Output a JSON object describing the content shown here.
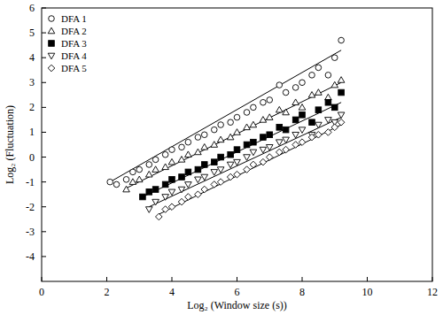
{
  "chart_data": {
    "type": "scatter",
    "x_label": "Log₂ (Window size (s))",
    "y_label": "Log₂ (Fluctuation)",
    "xlim": [
      0,
      12
    ],
    "ylim": [
      -5,
      6
    ],
    "xticks": [
      0,
      2,
      4,
      6,
      8,
      10,
      12
    ],
    "yticks": [
      -4,
      -3,
      -2,
      -1,
      0,
      1,
      2,
      3,
      4,
      5,
      6
    ],
    "grid": false,
    "legend": "top-left",
    "color": "#000000",
    "series": [
      {
        "name": "DFA 1",
        "marker": "circle-open",
        "x": [
          2.1,
          2.3,
          2.6,
          2.8,
          3.0,
          3.3,
          3.5,
          3.8,
          4.0,
          4.3,
          4.5,
          4.8,
          5.0,
          5.3,
          5.5,
          5.8,
          6.0,
          6.3,
          6.5,
          6.8,
          7.0,
          7.3,
          7.5,
          7.8,
          8.0,
          8.3,
          8.5,
          8.8,
          9.0,
          9.2
        ],
        "values": [
          -1.0,
          -1.1,
          -0.9,
          -0.6,
          -0.5,
          -0.3,
          -0.1,
          0.1,
          0.3,
          0.4,
          0.6,
          0.8,
          0.9,
          1.1,
          1.3,
          1.4,
          1.6,
          1.8,
          2.0,
          2.2,
          2.3,
          2.9,
          2.6,
          2.8,
          3.0,
          3.3,
          3.6,
          3.3,
          4.0,
          4.7
        ],
        "fit_x": [
          2.1,
          9.2
        ],
        "fit_values": [
          -1.0,
          4.3
        ]
      },
      {
        "name": "DFA 2",
        "marker": "triangle-open",
        "x": [
          2.6,
          2.8,
          3.0,
          3.3,
          3.5,
          3.8,
          4.0,
          4.3,
          4.5,
          4.8,
          5.0,
          5.3,
          5.5,
          5.8,
          6.0,
          6.3,
          6.5,
          6.8,
          7.0,
          7.3,
          7.5,
          7.8,
          8.0,
          8.3,
          8.5,
          8.8,
          9.0,
          9.2
        ],
        "values": [
          -1.3,
          -1.0,
          -0.9,
          -0.7,
          -0.5,
          -0.4,
          -0.2,
          -0.1,
          0.1,
          0.2,
          0.4,
          0.5,
          0.7,
          0.8,
          1.0,
          1.2,
          1.3,
          1.5,
          1.6,
          1.9,
          1.8,
          2.2,
          2.0,
          2.5,
          2.6,
          2.4,
          2.9,
          3.1
        ],
        "fit_x": [
          2.6,
          9.2
        ],
        "fit_values": [
          -1.25,
          3.0
        ]
      },
      {
        "name": "DFA 3",
        "marker": "square",
        "x": [
          3.1,
          3.3,
          3.5,
          3.8,
          4.0,
          4.3,
          4.5,
          4.8,
          5.0,
          5.3,
          5.5,
          5.8,
          6.0,
          6.3,
          6.5,
          6.8,
          7.0,
          7.3,
          7.5,
          7.8,
          8.0,
          8.3,
          8.5,
          8.8,
          9.0,
          9.2
        ],
        "values": [
          -1.6,
          -1.4,
          -1.3,
          -1.1,
          -0.9,
          -0.8,
          -0.6,
          -0.5,
          -0.3,
          -0.2,
          0.0,
          0.1,
          0.3,
          0.5,
          0.6,
          0.8,
          0.9,
          1.2,
          1.1,
          1.5,
          1.7,
          1.4,
          1.9,
          2.2,
          2.0,
          2.6
        ],
        "fit_x": [
          3.1,
          9.2
        ],
        "fit_values": [
          -1.6,
          2.2
        ]
      },
      {
        "name": "DFA 4",
        "marker": "triangle-down-open",
        "x": [
          3.3,
          3.5,
          3.8,
          4.0,
          4.3,
          4.5,
          4.8,
          5.0,
          5.3,
          5.5,
          5.8,
          6.0,
          6.3,
          6.5,
          6.8,
          7.0,
          7.3,
          7.5,
          7.8,
          8.0,
          8.3,
          8.5,
          8.8,
          9.0,
          9.2
        ],
        "values": [
          -2.1,
          -1.8,
          -1.6,
          -1.4,
          -1.3,
          -1.1,
          -0.9,
          -0.8,
          -0.6,
          -0.5,
          -0.3,
          -0.2,
          0.0,
          0.2,
          0.3,
          0.4,
          0.6,
          0.7,
          0.9,
          1.1,
          0.9,
          1.3,
          1.5,
          1.4,
          1.7
        ],
        "fit_x": [
          3.3,
          9.2
        ],
        "fit_values": [
          -2.0,
          1.6
        ]
      },
      {
        "name": "DFA 5",
        "marker": "diamond-open",
        "x": [
          3.6,
          3.8,
          4.0,
          4.3,
          4.5,
          4.8,
          5.0,
          5.3,
          5.5,
          5.8,
          6.0,
          6.3,
          6.5,
          6.8,
          7.0,
          7.3,
          7.5,
          7.8,
          8.0,
          8.3,
          8.5,
          8.8,
          9.0,
          9.2
        ],
        "values": [
          -2.4,
          -2.1,
          -2.0,
          -1.8,
          -1.6,
          -1.5,
          -1.3,
          -1.1,
          -1.0,
          -0.8,
          -0.7,
          -0.5,
          -0.3,
          -0.2,
          0.0,
          0.2,
          0.3,
          0.5,
          0.6,
          0.8,
          0.9,
          1.0,
          1.2,
          1.4
        ],
        "fit_x": [
          3.6,
          9.2
        ],
        "fit_values": [
          -2.3,
          1.3
        ]
      }
    ]
  }
}
